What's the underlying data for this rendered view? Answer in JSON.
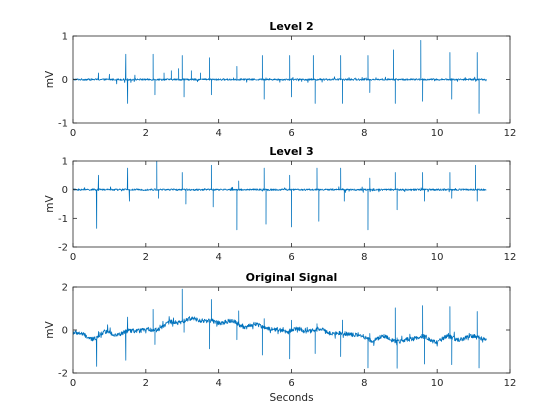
{
  "chart_data": [
    {
      "type": "line",
      "title": "Level 2",
      "xlabel": "",
      "ylabel": "mV",
      "xlim": [
        0,
        12
      ],
      "ylim": [
        -1,
        1
      ],
      "xticks": [
        0,
        2,
        4,
        6,
        8,
        10,
        12
      ],
      "yticks": [
        -1,
        0,
        1
      ],
      "color": "#0072BD",
      "baseline": 0,
      "noise": 0.02,
      "x_end": 11.35,
      "spikes": [
        {
          "x": 0.7,
          "y": 0.15
        },
        {
          "x": 1.0,
          "y": 0.12
        },
        {
          "x": 1.2,
          "y": -0.1
        },
        {
          "x": 1.45,
          "y": 0.58
        },
        {
          "x": 1.5,
          "y": -0.55
        },
        {
          "x": 1.7,
          "y": 0.1
        },
        {
          "x": 2.2,
          "y": 0.58
        },
        {
          "x": 2.25,
          "y": -0.35
        },
        {
          "x": 2.5,
          "y": 0.15
        },
        {
          "x": 2.7,
          "y": 0.2
        },
        {
          "x": 2.9,
          "y": 0.25
        },
        {
          "x": 3.0,
          "y": 0.55
        },
        {
          "x": 3.05,
          "y": -0.4
        },
        {
          "x": 3.25,
          "y": 0.2
        },
        {
          "x": 3.5,
          "y": 0.15
        },
        {
          "x": 3.75,
          "y": 0.5
        },
        {
          "x": 3.8,
          "y": -0.35
        },
        {
          "x": 4.5,
          "y": 0.3
        },
        {
          "x": 5.2,
          "y": 0.55
        },
        {
          "x": 5.25,
          "y": -0.45
        },
        {
          "x": 5.95,
          "y": 0.55
        },
        {
          "x": 6.0,
          "y": -0.4
        },
        {
          "x": 6.6,
          "y": 0.55
        },
        {
          "x": 6.65,
          "y": -0.55
        },
        {
          "x": 7.35,
          "y": 0.55
        },
        {
          "x": 7.4,
          "y": -0.55
        },
        {
          "x": 8.1,
          "y": 0.55
        },
        {
          "x": 8.15,
          "y": -0.3
        },
        {
          "x": 8.8,
          "y": 0.68
        },
        {
          "x": 8.85,
          "y": -0.55
        },
        {
          "x": 9.55,
          "y": 0.9
        },
        {
          "x": 9.6,
          "y": -0.5
        },
        {
          "x": 10.35,
          "y": 0.62
        },
        {
          "x": 10.4,
          "y": -0.45
        },
        {
          "x": 11.1,
          "y": 0.62
        },
        {
          "x": 11.15,
          "y": -0.78
        }
      ]
    },
    {
      "type": "line",
      "title": "Level 3",
      "xlabel": "",
      "ylabel": "mV",
      "xlim": [
        0,
        12
      ],
      "ylim": [
        -2,
        1
      ],
      "xticks": [
        0,
        2,
        4,
        6,
        8,
        10,
        12
      ],
      "yticks": [
        -2,
        -1,
        0,
        1
      ],
      "color": "#0072BD",
      "baseline": 0,
      "noise": 0.03,
      "x_end": 11.35,
      "spikes": [
        {
          "x": 0.65,
          "y": -1.35
        },
        {
          "x": 0.7,
          "y": 0.5
        },
        {
          "x": 1.5,
          "y": 0.75
        },
        {
          "x": 1.55,
          "y": -0.4
        },
        {
          "x": 2.3,
          "y": 1.0
        },
        {
          "x": 2.35,
          "y": -0.3
        },
        {
          "x": 3.0,
          "y": 0.6
        },
        {
          "x": 3.1,
          "y": -0.5
        },
        {
          "x": 3.8,
          "y": 0.85
        },
        {
          "x": 3.85,
          "y": -0.6
        },
        {
          "x": 4.5,
          "y": -1.4
        },
        {
          "x": 4.55,
          "y": 0.3
        },
        {
          "x": 5.25,
          "y": 0.75
        },
        {
          "x": 5.3,
          "y": -1.2
        },
        {
          "x": 5.95,
          "y": 0.5
        },
        {
          "x": 6.0,
          "y": -1.3
        },
        {
          "x": 6.7,
          "y": 0.75
        },
        {
          "x": 6.75,
          "y": -1.1
        },
        {
          "x": 7.35,
          "y": 0.75
        },
        {
          "x": 7.45,
          "y": -0.4
        },
        {
          "x": 8.1,
          "y": -1.4
        },
        {
          "x": 8.15,
          "y": 0.4
        },
        {
          "x": 8.85,
          "y": 0.6
        },
        {
          "x": 8.9,
          "y": -0.7
        },
        {
          "x": 9.6,
          "y": 0.6
        },
        {
          "x": 9.65,
          "y": -0.4
        },
        {
          "x": 10.35,
          "y": 0.6
        },
        {
          "x": 10.4,
          "y": -0.3
        },
        {
          "x": 11.05,
          "y": 0.85
        },
        {
          "x": 11.1,
          "y": -0.4
        }
      ]
    },
    {
      "type": "line",
      "title": "Original Signal",
      "xlabel": "Seconds",
      "ylabel": "mV",
      "xlim": [
        0,
        12
      ],
      "ylim": [
        -2,
        2
      ],
      "xticks": [
        0,
        2,
        4,
        6,
        8,
        10,
        12
      ],
      "yticks": [
        -2,
        0,
        2
      ],
      "color": "#0072BD",
      "noise": 0.1,
      "x_end": 11.35,
      "baseline_points": [
        [
          0,
          -0.1
        ],
        [
          0.5,
          -0.35
        ],
        [
          1.0,
          -0.15
        ],
        [
          1.5,
          -0.1
        ],
        [
          2.0,
          0.0
        ],
        [
          2.5,
          0.15
        ],
        [
          3.0,
          0.5
        ],
        [
          3.5,
          0.45
        ],
        [
          4.0,
          0.4
        ],
        [
          4.5,
          0.3
        ],
        [
          5.0,
          0.2
        ],
        [
          5.5,
          0.05
        ],
        [
          6.0,
          -0.05
        ],
        [
          6.5,
          0.05
        ],
        [
          7.0,
          -0.1
        ],
        [
          7.5,
          -0.15
        ],
        [
          8.0,
          -0.35
        ],
        [
          8.5,
          -0.4
        ],
        [
          9.0,
          -0.5
        ],
        [
          9.5,
          -0.35
        ],
        [
          10.0,
          -0.45
        ],
        [
          10.5,
          -0.4
        ],
        [
          11.0,
          -0.3
        ],
        [
          11.35,
          -0.45
        ]
      ],
      "spikes": [
        {
          "x": 0.65,
          "y": -1.4
        },
        {
          "x": 0.7,
          "y": 0.2
        },
        {
          "x": 1.45,
          "y": -1.3
        },
        {
          "x": 1.5,
          "y": 0.7
        },
        {
          "x": 2.2,
          "y": 0.9
        },
        {
          "x": 2.25,
          "y": -0.75
        },
        {
          "x": 3.0,
          "y": 1.4
        },
        {
          "x": 3.05,
          "y": -0.6
        },
        {
          "x": 3.75,
          "y": -1.3
        },
        {
          "x": 3.8,
          "y": 1.0
        },
        {
          "x": 4.5,
          "y": -0.75
        },
        {
          "x": 4.55,
          "y": 0.6
        },
        {
          "x": 5.2,
          "y": -1.3
        },
        {
          "x": 5.25,
          "y": 0.4
        },
        {
          "x": 5.95,
          "y": -1.3
        },
        {
          "x": 6.0,
          "y": 0.5
        },
        {
          "x": 6.65,
          "y": -1.1
        },
        {
          "x": 6.7,
          "y": 0.3
        },
        {
          "x": 7.35,
          "y": -1.1
        },
        {
          "x": 7.4,
          "y": 0.6
        },
        {
          "x": 8.1,
          "y": -1.4
        },
        {
          "x": 8.15,
          "y": 0.2
        },
        {
          "x": 8.85,
          "y": 1.5
        },
        {
          "x": 8.9,
          "y": -1.3
        },
        {
          "x": 9.6,
          "y": 1.5
        },
        {
          "x": 9.65,
          "y": -1.2
        },
        {
          "x": 10.35,
          "y": 1.5
        },
        {
          "x": 10.4,
          "y": -1.2
        },
        {
          "x": 11.1,
          "y": 1.2
        },
        {
          "x": 11.15,
          "y": -1.4
        }
      ]
    }
  ]
}
